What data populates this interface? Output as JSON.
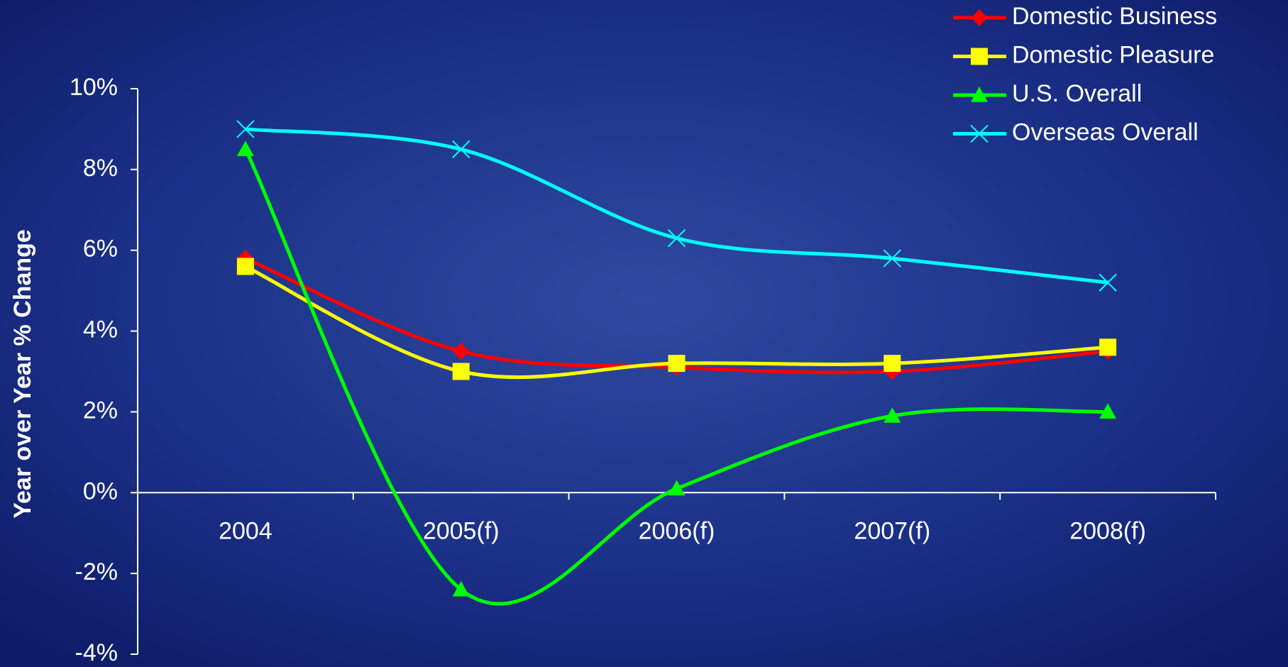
{
  "chart_data": {
    "type": "line",
    "y_label": "Year over Year % Change",
    "categories": [
      "2004",
      "2005(f)",
      "2006(f)",
      "2007(f)",
      "2008(f)"
    ],
    "series": [
      {
        "name": "Domestic Business",
        "color": "#ff0000",
        "marker": "diamond",
        "values": [
          5.8,
          3.5,
          3.1,
          3.0,
          3.5
        ]
      },
      {
        "name": "Domestic Pleasure",
        "color": "#ffff00",
        "marker": "square",
        "values": [
          5.6,
          3.0,
          3.2,
          3.2,
          3.6
        ]
      },
      {
        "name": "U.S. Overall",
        "color": "#00ff00",
        "marker": "triangle",
        "values": [
          8.5,
          -2.4,
          0.1,
          1.9,
          2.0
        ]
      },
      {
        "name": "Overseas Overall",
        "color": "#00ffff",
        "marker": "x",
        "values": [
          9.0,
          8.5,
          6.3,
          5.8,
          5.2
        ]
      }
    ],
    "ylim": [
      -4,
      10
    ],
    "yticks": [
      {
        "value": -4,
        "label": "-4%"
      },
      {
        "value": -2,
        "label": "-2%"
      },
      {
        "value": 0,
        "label": "0%"
      },
      {
        "value": 2,
        "label": "2%"
      },
      {
        "value": 4,
        "label": "4%"
      },
      {
        "value": 6,
        "label": "6%"
      },
      {
        "value": 8,
        "label": "8%"
      },
      {
        "value": 10,
        "label": "10%"
      }
    ],
    "smooth": true,
    "legend": "top-right"
  }
}
